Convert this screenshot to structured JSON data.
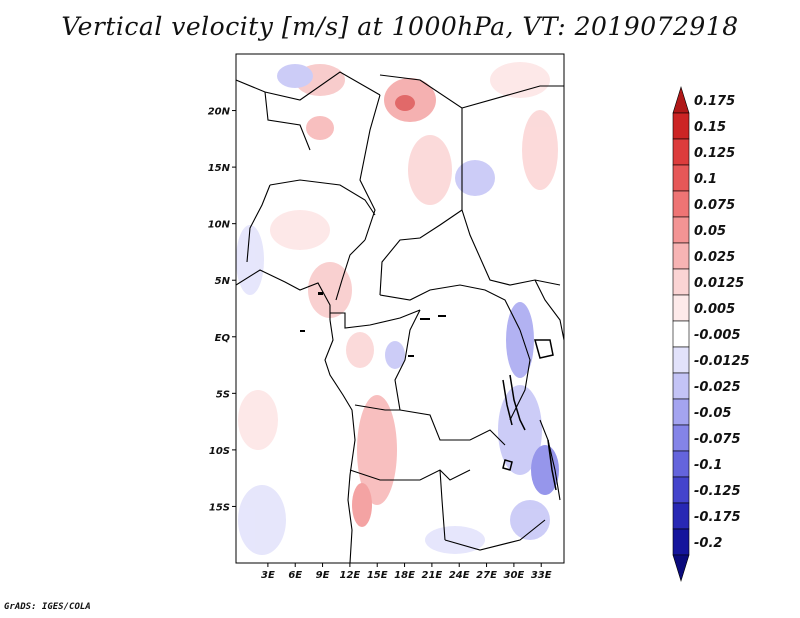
{
  "title": "Vertical velocity [m/s] at 1000hPa, VT: 2019072918",
  "credit": "GrADS: IGES/COLA",
  "map": {
    "lon_range": [
      -0.5,
      35.5
    ],
    "lat_range": [
      -20,
      25
    ],
    "lat_ticks": [
      {
        "value": 20,
        "label": "20N"
      },
      {
        "value": 15,
        "label": "15N"
      },
      {
        "value": 10,
        "label": "10N"
      },
      {
        "value": 5,
        "label": "5N"
      },
      {
        "value": 0,
        "label": "EQ"
      },
      {
        "value": -5,
        "label": "5S"
      },
      {
        "value": -10,
        "label": "10S"
      },
      {
        "value": -15,
        "label": "15S"
      }
    ],
    "lon_ticks": [
      {
        "value": 3,
        "label": "3E"
      },
      {
        "value": 6,
        "label": "6E"
      },
      {
        "value": 9,
        "label": "9E"
      },
      {
        "value": 12,
        "label": "12E"
      },
      {
        "value": 15,
        "label": "15E"
      },
      {
        "value": 18,
        "label": "18E"
      },
      {
        "value": 21,
        "label": "21E"
      },
      {
        "value": 24,
        "label": "24E"
      },
      {
        "value": 27,
        "label": "27E"
      },
      {
        "value": 30,
        "label": "30E"
      },
      {
        "value": 33,
        "label": "33E"
      }
    ]
  },
  "colorbar": {
    "labels": [
      "0.175",
      "0.15",
      "0.125",
      "0.1",
      "0.075",
      "0.05",
      "0.025",
      "0.0125",
      "0.005",
      "-0.005",
      "-0.0125",
      "-0.025",
      "-0.05",
      "-0.075",
      "-0.1",
      "-0.125",
      "-0.175",
      "-0.2"
    ],
    "colors": [
      "#b01818",
      "#cc2424",
      "#dc3c3c",
      "#e65858",
      "#ee7474",
      "#f39494",
      "#f7b4b4",
      "#fbd4d4",
      "#fdeaea",
      "#ffffff",
      "#e2e2fb",
      "#c4c4f6",
      "#a4a4f0",
      "#8484e8",
      "#6464dc",
      "#4444cc",
      "#2828b4",
      "#14149c",
      "#0a0a7c"
    ]
  }
}
